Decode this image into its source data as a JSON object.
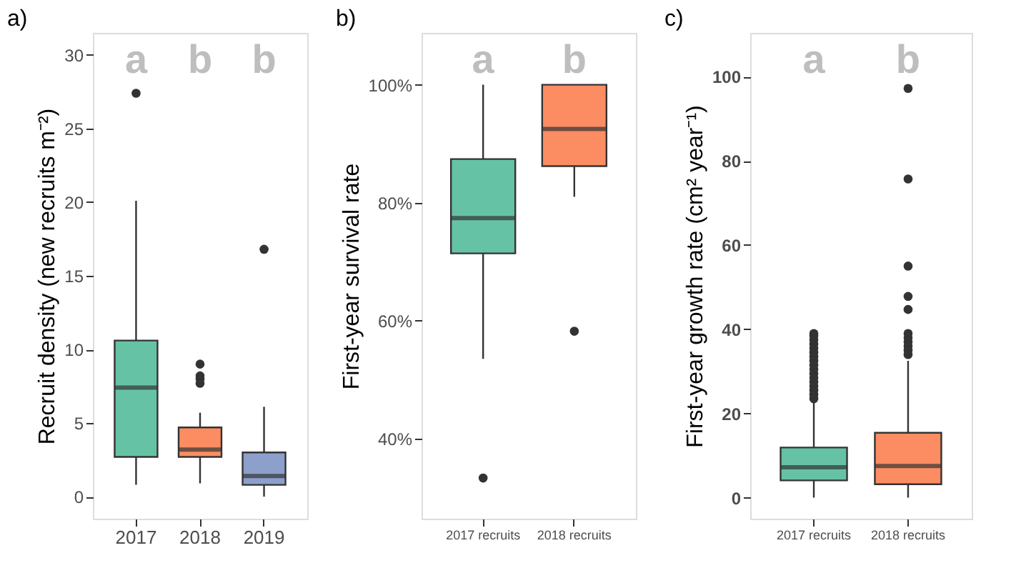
{
  "chart_data": [
    {
      "type": "box",
      "title": "a)",
      "ylabel": "Recruit density (new recruits m⁻²)",
      "categories": [
        "2017",
        "2018",
        "2019"
      ],
      "colors": [
        "#66c2a5",
        "#fc8d62",
        "#8da0cb"
      ],
      "boxes": [
        {
          "low": 0.8,
          "q1": 2.7,
          "median": 7.4,
          "q3": 10.6,
          "high": 20.1,
          "outliers": [
            27.4
          ]
        },
        {
          "low": 0.9,
          "q1": 2.7,
          "median": 3.2,
          "q3": 4.7,
          "high": 5.7,
          "outliers": [
            7.7,
            8.0,
            8.2,
            9.0
          ]
        },
        {
          "low": 0.0,
          "q1": 0.8,
          "median": 1.4,
          "q3": 3.0,
          "high": 6.1,
          "outliers": [
            16.8
          ]
        }
      ],
      "ylim": [
        -1.5,
        31.5
      ],
      "yticks": [
        0,
        5,
        10,
        15,
        20,
        25,
        30
      ],
      "grid": false,
      "annotations": [
        "a",
        "b",
        "b"
      ]
    },
    {
      "type": "box",
      "title": "b)",
      "ylabel": "First-year survival rate",
      "categories": [
        "2017 recruits",
        "2018 recruits"
      ],
      "colors": [
        "#66c2a5",
        "#fc8d62"
      ],
      "boxes": [
        {
          "low": 53.5,
          "q1": 71.4,
          "median": 77.4,
          "q3": 87.4,
          "high": 100,
          "outliers": [
            33.3
          ]
        },
        {
          "low": 81.0,
          "q1": 86.2,
          "median": 92.5,
          "q3": 100,
          "high": 100,
          "outliers": [
            58.2
          ]
        }
      ],
      "ylim": [
        26.4,
        108.8
      ],
      "yticks": [
        {
          "value": 40,
          "label": "40%"
        },
        {
          "value": 60,
          "label": "60%"
        },
        {
          "value": 80,
          "label": "80%"
        },
        {
          "value": 100,
          "label": "100%"
        }
      ],
      "grid": false,
      "annotations": [
        "a",
        "b"
      ]
    },
    {
      "type": "box",
      "title": "c)",
      "ylabel": "First-year growth rate (cm² year⁻¹)",
      "categories": [
        "2017 recruits",
        "2018 recruits"
      ],
      "colors": [
        "#66c2a5",
        "#fc8d62"
      ],
      "boxes": [
        {
          "low": 0,
          "q1": 4.1,
          "median": 7.2,
          "q3": 11.9,
          "high": 22.5,
          "outliers": [
            23.5,
            24.5,
            25.5,
            26.5,
            27.5,
            28.5,
            29.5,
            30.5,
            31.5,
            32.5,
            33.5,
            34.5,
            35.5,
            36.5,
            37.5,
            38.5,
            39
          ]
        },
        {
          "low": 0,
          "q1": 3.2,
          "median": 7.5,
          "q3": 15.4,
          "high": 32.5,
          "outliers": [
            34,
            35,
            36,
            37,
            38,
            39,
            44.7,
            47.8,
            55,
            75.7,
            97.2
          ]
        }
      ],
      "ylim": [
        -5,
        110.4
      ],
      "yticks": [
        0,
        20,
        40,
        60,
        80,
        100
      ],
      "grid": false,
      "annotations": [
        "a",
        "b"
      ]
    }
  ]
}
